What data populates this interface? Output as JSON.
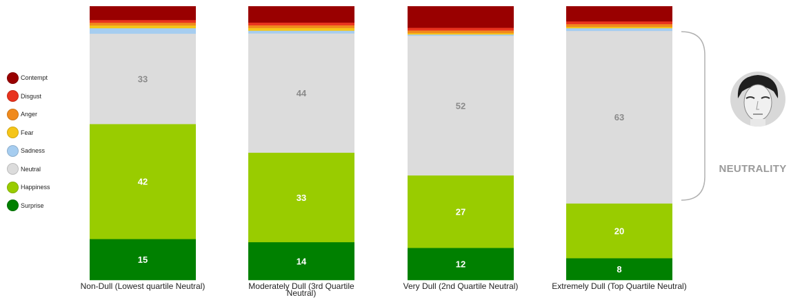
{
  "legend": [
    {
      "label": "Contempt",
      "color": "#990000"
    },
    {
      "label": "Disgust",
      "color": "#e8331e"
    },
    {
      "label": "Anger",
      "color": "#f08a1d"
    },
    {
      "label": "Fear",
      "color": "#f5c518"
    },
    {
      "label": "Sadness",
      "color": "#a6cdf0"
    },
    {
      "label": "Neutral",
      "color": "#dcdcdc"
    },
    {
      "label": "Happiness",
      "color": "#99cc00"
    },
    {
      "label": "Surprise",
      "color": "#008000"
    }
  ],
  "annotation": {
    "label": "NEUTRALITY",
    "face_icon": "neutral-face-photo-icon"
  },
  "chart_data": {
    "type": "bar",
    "stacked": true,
    "categories": [
      "Non-Dull (Lowest quartile Neutral)",
      "Moderately Dull (3rd Quartile Neutral)",
      "Very Dull (2nd Quartile Neutral)",
      "Extremely Dull (Top Quartile Neutral)"
    ],
    "series": [
      {
        "name": "Surprise",
        "values": [
          15,
          14,
          12,
          8
        ],
        "labeled": true
      },
      {
        "name": "Happiness",
        "values": [
          42,
          33,
          27,
          20
        ],
        "labeled": true
      },
      {
        "name": "Neutral",
        "values": [
          33,
          44,
          52,
          63
        ],
        "labeled": true
      },
      {
        "name": "Sadness",
        "values": [
          2,
          1,
          0.5,
          1
        ],
        "labeled": false
      },
      {
        "name": "Fear",
        "values": [
          1,
          1,
          0.5,
          0.5
        ],
        "labeled": false
      },
      {
        "name": "Anger",
        "values": [
          1,
          1,
          1,
          1
        ],
        "labeled": false
      },
      {
        "name": "Disgust",
        "values": [
          1,
          1,
          1,
          1
        ],
        "labeled": false
      },
      {
        "name": "Contempt",
        "values": [
          5,
          6,
          8,
          5.5
        ],
        "labeled": false
      }
    ],
    "ylim": [
      0,
      100
    ],
    "grid": false,
    "legend_position": "left"
  }
}
